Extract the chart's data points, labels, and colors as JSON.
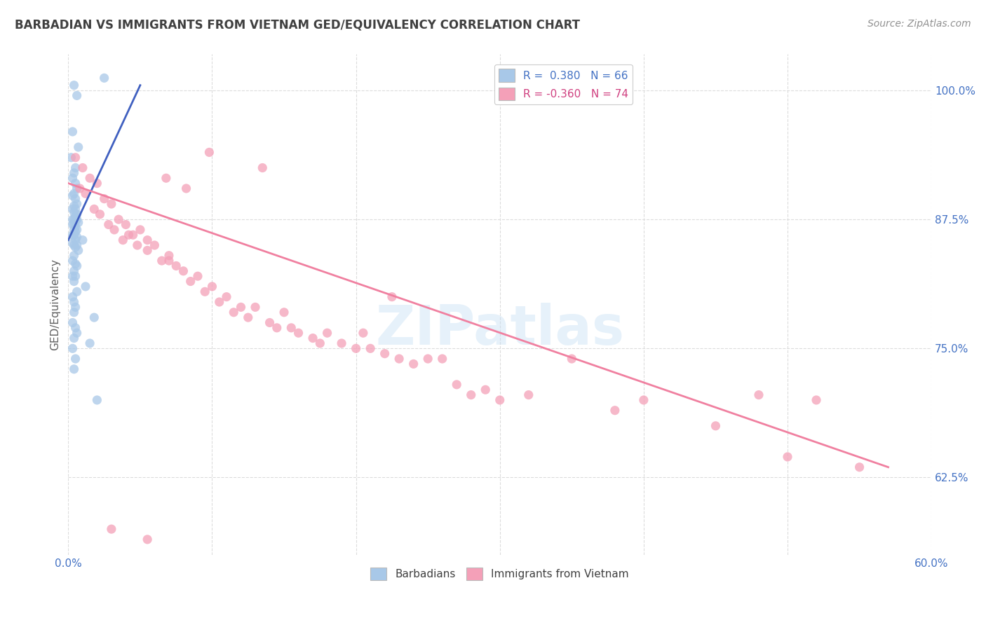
{
  "title": "BARBADIAN VS IMMIGRANTS FROM VIETNAM GED/EQUIVALENCY CORRELATION CHART",
  "source": "Source: ZipAtlas.com",
  "ylabel": "GED/Equivalency",
  "xlim": [
    0.0,
    60.0
  ],
  "ylim": [
    55.0,
    103.5
  ],
  "yticks": [
    62.5,
    75.0,
    87.5,
    100.0
  ],
  "ytick_labels": [
    "62.5%",
    "75.0%",
    "87.5%",
    "100.0%"
  ],
  "xtick_positions": [
    0.0,
    10.0,
    20.0,
    30.0,
    40.0,
    50.0,
    60.0
  ],
  "legend_r1": "R =  0.380",
  "legend_n1": "N = 66",
  "legend_r2": "R = -0.360",
  "legend_n2": "N = 74",
  "color_blue": "#A8C8E8",
  "color_pink": "#F4A0B8",
  "color_blue_line": "#4060C0",
  "color_pink_line": "#F080A0",
  "color_blue_dark": "#4472C4",
  "color_pink_dark": "#D04080",
  "background_color": "#FFFFFF",
  "grid_color": "#DCDCDC",
  "title_color": "#404040",
  "source_color": "#909090",
  "axis_label_color": "#4472C4",
  "blue_scatter_x": [
    0.4,
    0.6,
    2.5,
    0.3,
    0.7,
    0.2,
    0.5,
    0.4,
    0.3,
    0.5,
    0.6,
    0.4,
    0.3,
    0.5,
    0.6,
    0.4,
    0.3,
    0.5,
    0.4,
    0.6,
    0.5,
    0.3,
    0.4,
    0.6,
    0.5,
    0.7,
    0.4,
    0.3,
    0.5,
    0.4,
    0.6,
    0.5,
    0.3,
    0.4,
    0.6,
    1.0,
    0.5,
    0.3,
    0.4,
    0.6,
    0.5,
    0.7,
    0.4,
    0.3,
    0.5,
    0.6,
    0.4,
    0.3,
    0.5,
    0.4,
    1.2,
    0.6,
    0.3,
    0.4,
    0.5,
    0.4,
    1.8,
    0.3,
    0.5,
    0.6,
    0.4,
    1.5,
    0.3,
    0.5,
    0.4,
    2.0
  ],
  "blue_scatter_y": [
    100.5,
    99.5,
    101.2,
    96.0,
    94.5,
    93.5,
    92.5,
    92.0,
    91.5,
    91.0,
    90.5,
    90.0,
    89.8,
    89.5,
    89.0,
    88.8,
    88.5,
    88.5,
    88.2,
    88.0,
    87.8,
    87.5,
    87.5,
    87.5,
    87.3,
    87.2,
    87.0,
    87.0,
    86.8,
    86.5,
    86.5,
    86.3,
    86.0,
    86.0,
    85.8,
    85.5,
    85.5,
    85.2,
    85.0,
    85.0,
    84.8,
    84.5,
    84.0,
    83.5,
    83.2,
    83.0,
    82.5,
    82.0,
    82.0,
    81.5,
    81.0,
    80.5,
    80.0,
    79.5,
    79.0,
    78.5,
    78.0,
    77.5,
    77.0,
    76.5,
    76.0,
    75.5,
    75.0,
    74.0,
    73.0,
    70.0
  ],
  "pink_scatter_x": [
    0.5,
    1.0,
    1.5,
    2.0,
    0.8,
    1.2,
    2.5,
    3.0,
    1.8,
    2.2,
    3.5,
    4.0,
    2.8,
    3.2,
    4.5,
    3.8,
    5.0,
    4.2,
    5.5,
    4.8,
    6.0,
    5.5,
    7.0,
    6.5,
    7.5,
    8.0,
    7.0,
    9.0,
    8.5,
    10.0,
    9.5,
    11.0,
    10.5,
    12.0,
    11.5,
    13.0,
    12.5,
    14.0,
    15.0,
    14.5,
    16.0,
    15.5,
    17.0,
    18.0,
    17.5,
    19.0,
    20.0,
    21.0,
    20.5,
    22.0,
    23.0,
    24.0,
    25.0,
    26.0,
    27.0,
    28.0,
    29.0,
    30.0,
    32.0,
    35.0,
    38.0,
    40.0,
    45.0,
    48.0,
    50.0,
    52.0,
    55.0,
    3.0,
    5.5,
    6.8,
    8.2,
    9.8,
    13.5,
    22.5
  ],
  "pink_scatter_y": [
    93.5,
    92.5,
    91.5,
    91.0,
    90.5,
    90.0,
    89.5,
    89.0,
    88.5,
    88.0,
    87.5,
    87.0,
    87.0,
    86.5,
    86.0,
    85.5,
    86.5,
    86.0,
    85.5,
    85.0,
    85.0,
    84.5,
    84.0,
    83.5,
    83.0,
    82.5,
    83.5,
    82.0,
    81.5,
    81.0,
    80.5,
    80.0,
    79.5,
    79.0,
    78.5,
    79.0,
    78.0,
    77.5,
    78.5,
    77.0,
    76.5,
    77.0,
    76.0,
    76.5,
    75.5,
    75.5,
    75.0,
    75.0,
    76.5,
    74.5,
    74.0,
    73.5,
    74.0,
    74.0,
    71.5,
    70.5,
    71.0,
    70.0,
    70.5,
    74.0,
    69.0,
    70.0,
    67.5,
    70.5,
    64.5,
    70.0,
    63.5,
    57.5,
    56.5,
    91.5,
    90.5,
    94.0,
    92.5,
    80.0
  ],
  "blue_line_x": [
    0.0,
    5.0
  ],
  "blue_line_y": [
    85.5,
    100.5
  ],
  "pink_line_x": [
    0.0,
    57.0
  ],
  "pink_line_y": [
    91.0,
    63.5
  ]
}
